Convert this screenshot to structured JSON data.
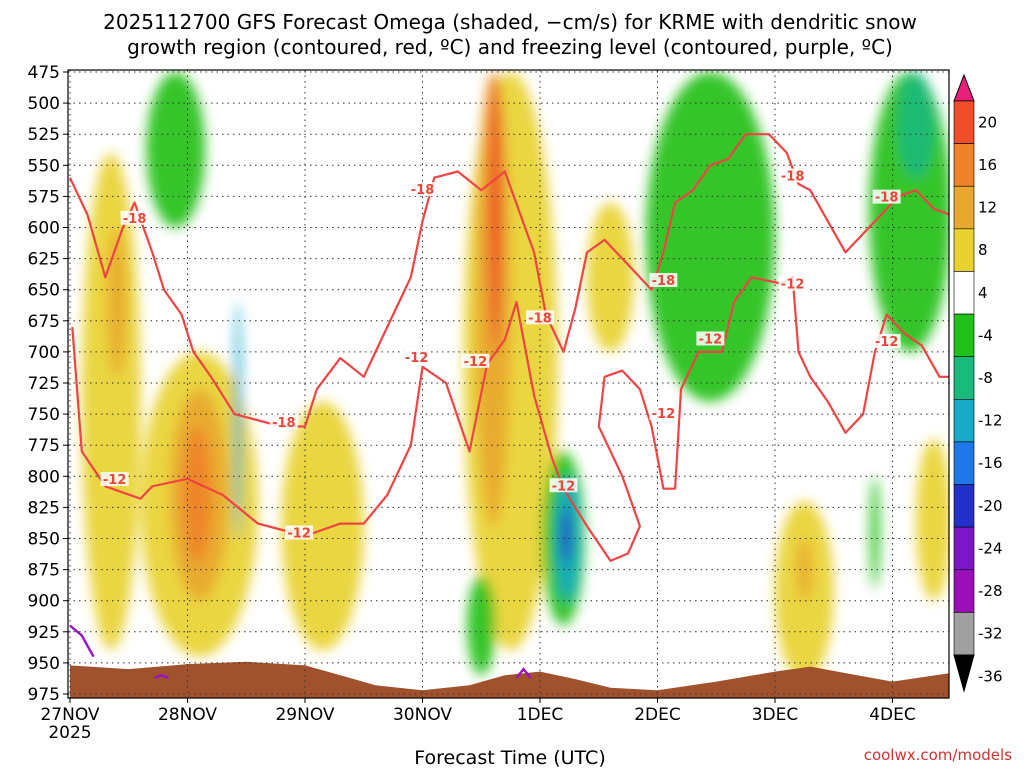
{
  "chart_data": {
    "type": "heatmap",
    "title_line1": "2025112700 GFS Forecast Omega (shaded, −cm/s) for KRME with dendritic snow",
    "title_line2": "growth region (contoured, red, ºC) and freezing level (contoured, purple, ºC)",
    "xlabel": "Forecast Time (UTC)",
    "credit": "coolwx.com/models",
    "x_ticks": [
      "27NOV",
      "28NOV",
      "29NOV",
      "30NOV",
      "1DEC",
      "2DEC",
      "3DEC",
      "4DEC"
    ],
    "x_year": "2025",
    "y_ticks": [
      "475",
      "500",
      "525",
      "550",
      "575",
      "600",
      "625",
      "650",
      "675",
      "700",
      "725",
      "750",
      "775",
      "800",
      "825",
      "850",
      "875",
      "900",
      "925",
      "950",
      "975"
    ],
    "ylim": [
      475,
      975
    ],
    "xlim_days": [
      0,
      7.5
    ],
    "grid": true,
    "colorbar": {
      "labels": [
        "20",
        "16",
        "12",
        "8",
        "4",
        "-4",
        "-8",
        "-12",
        "-16",
        "-20",
        "-24",
        "-28",
        "-32",
        "-36"
      ],
      "bins": [
        {
          "range": ">20",
          "color": "#e8207a"
        },
        {
          "range": "16-20",
          "color": "#f04d2a"
        },
        {
          "range": "12-16",
          "color": "#f0822a"
        },
        {
          "range": "8-12",
          "color": "#e8a830"
        },
        {
          "range": "4-8",
          "color": "#e8d230"
        },
        {
          "range": "-4-4",
          "color": "#ffffff"
        },
        {
          "range": "-8--4",
          "color": "#22c01a"
        },
        {
          "range": "-12--8",
          "color": "#1aba7c"
        },
        {
          "range": "-16--12",
          "color": "#18a8c8"
        },
        {
          "range": "-20--16",
          "color": "#1e78e8"
        },
        {
          "range": "-24--20",
          "color": "#2030c8"
        },
        {
          "range": "-28--24",
          "color": "#7a18c8"
        },
        {
          "range": "-32--28",
          "color": "#9a10b8"
        },
        {
          "range": "-36--32",
          "color": "#a0a0a0"
        },
        {
          "range": "<-36",
          "color": "#000000"
        }
      ]
    },
    "omega_features": [
      {
        "day": 0.35,
        "p_top": 540,
        "p_bot": 940,
        "halfwidth": 0.25,
        "color": "#e8d230"
      },
      {
        "day": 0.4,
        "p_top": 600,
        "p_bot": 720,
        "halfwidth": 0.08,
        "color": "#e8a830"
      },
      {
        "day": 1.1,
        "p_top": 700,
        "p_bot": 945,
        "halfwidth": 0.5,
        "color": "#e8d230"
      },
      {
        "day": 1.1,
        "p_top": 730,
        "p_bot": 900,
        "halfwidth": 0.25,
        "color": "#e8a830"
      },
      {
        "day": 1.08,
        "p_top": 760,
        "p_bot": 870,
        "halfwidth": 0.12,
        "color": "#f0822a"
      },
      {
        "day": 2.15,
        "p_top": 740,
        "p_bot": 940,
        "halfwidth": 0.35,
        "color": "#e8d230"
      },
      {
        "day": 3.75,
        "p_top": 475,
        "p_bot": 940,
        "halfwidth": 0.4,
        "color": "#e8d230"
      },
      {
        "day": 3.6,
        "p_top": 475,
        "p_bot": 840,
        "halfwidth": 0.15,
        "color": "#e8a830"
      },
      {
        "day": 3.62,
        "p_top": 475,
        "p_bot": 700,
        "halfwidth": 0.06,
        "color": "#f04d2a"
      },
      {
        "day": 4.6,
        "p_top": 580,
        "p_bot": 700,
        "halfwidth": 0.2,
        "color": "#e8d230"
      },
      {
        "day": 6.25,
        "p_top": 820,
        "p_bot": 965,
        "halfwidth": 0.25,
        "color": "#e8d230"
      },
      {
        "day": 6.25,
        "p_top": 850,
        "p_bot": 900,
        "halfwidth": 0.06,
        "color": "#e8a830"
      },
      {
        "day": 7.35,
        "p_top": 770,
        "p_bot": 900,
        "halfwidth": 0.15,
        "color": "#e8d230"
      },
      {
        "day": 0.9,
        "p_top": 475,
        "p_bot": 600,
        "halfwidth": 0.25,
        "color": "#22c01a"
      },
      {
        "day": 5.45,
        "p_top": 475,
        "p_bot": 740,
        "halfwidth": 0.55,
        "color": "#22c01a"
      },
      {
        "day": 7.15,
        "p_top": 475,
        "p_bot": 700,
        "halfwidth": 0.35,
        "color": "#22c01a"
      },
      {
        "day": 7.2,
        "p_top": 475,
        "p_bot": 560,
        "halfwidth": 0.15,
        "color": "#1aba7c"
      },
      {
        "day": 4.2,
        "p_top": 780,
        "p_bot": 920,
        "halfwidth": 0.18,
        "color": "#22c01a"
      },
      {
        "day": 4.23,
        "p_top": 800,
        "p_bot": 900,
        "halfwidth": 0.1,
        "color": "#18a8c8"
      },
      {
        "day": 4.22,
        "p_top": 825,
        "p_bot": 870,
        "halfwidth": 0.04,
        "color": "#2030c8"
      },
      {
        "day": 3.5,
        "p_top": 880,
        "p_bot": 960,
        "halfwidth": 0.12,
        "color": "#22c01a"
      },
      {
        "day": 1.43,
        "p_top": 660,
        "p_bot": 850,
        "halfwidth": 0.03,
        "color": "#18a8c8"
      },
      {
        "day": 6.85,
        "p_top": 800,
        "p_bot": 890,
        "halfwidth": 0.04,
        "color": "#22c01a"
      }
    ],
    "red_contours": [
      {
        "label": "-12",
        "points": [
          [
            0.02,
            680
          ],
          [
            0.1,
            780
          ],
          [
            0.3,
            808
          ],
          [
            0.6,
            818
          ],
          [
            0.7,
            808
          ],
          [
            1.0,
            802
          ],
          [
            1.3,
            815
          ],
          [
            1.6,
            838
          ],
          [
            2.0,
            848
          ],
          [
            2.3,
            838
          ],
          [
            2.5,
            838
          ],
          [
            2.7,
            815
          ],
          [
            2.9,
            775
          ],
          [
            3.0,
            712
          ],
          [
            3.2,
            725
          ],
          [
            3.4,
            780
          ],
          [
            3.55,
            710
          ],
          [
            3.7,
            690
          ],
          [
            3.8,
            660
          ],
          [
            3.95,
            735
          ],
          [
            4.1,
            785
          ],
          [
            4.2,
            810
          ],
          [
            4.4,
            840
          ],
          [
            4.6,
            868
          ],
          [
            4.75,
            862
          ],
          [
            4.85,
            840
          ],
          [
            4.7,
            800
          ],
          [
            4.5,
            760
          ],
          [
            4.55,
            720
          ],
          [
            4.7,
            715
          ],
          [
            4.85,
            730
          ],
          [
            4.95,
            760
          ],
          [
            5.05,
            810
          ],
          [
            5.15,
            810
          ],
          [
            5.2,
            730
          ],
          [
            5.35,
            700
          ],
          [
            5.55,
            700
          ],
          [
            5.65,
            660
          ],
          [
            5.8,
            640
          ],
          [
            6.05,
            645
          ],
          [
            6.15,
            640
          ],
          [
            6.2,
            700
          ],
          [
            6.3,
            720
          ],
          [
            6.45,
            740
          ],
          [
            6.6,
            765
          ],
          [
            6.75,
            750
          ],
          [
            6.85,
            700
          ],
          [
            6.95,
            670
          ],
          [
            7.1,
            685
          ],
          [
            7.25,
            695
          ],
          [
            7.4,
            720
          ],
          [
            7.5,
            720
          ]
        ]
      },
      {
        "label": "-18",
        "points": [
          [
            0.0,
            560
          ],
          [
            0.15,
            590
          ],
          [
            0.3,
            640
          ],
          [
            0.45,
            600
          ],
          [
            0.55,
            580
          ],
          [
            0.7,
            620
          ],
          [
            0.8,
            650
          ],
          [
            0.95,
            670
          ],
          [
            1.05,
            700
          ],
          [
            1.2,
            720
          ],
          [
            1.4,
            750
          ],
          [
            1.8,
            760
          ],
          [
            2.0,
            760
          ],
          [
            2.1,
            730
          ],
          [
            2.3,
            705
          ],
          [
            2.5,
            720
          ],
          [
            2.6,
            700
          ],
          [
            2.75,
            670
          ],
          [
            2.9,
            640
          ],
          [
            3.0,
            595
          ],
          [
            3.1,
            560
          ],
          [
            3.3,
            555
          ],
          [
            3.5,
            570
          ],
          [
            3.7,
            555
          ],
          [
            3.95,
            620
          ],
          [
            4.05,
            670
          ],
          [
            4.2,
            700
          ],
          [
            4.3,
            665
          ],
          [
            4.4,
            620
          ],
          [
            4.55,
            610
          ],
          [
            4.75,
            630
          ],
          [
            4.95,
            650
          ],
          [
            5.05,
            620
          ],
          [
            5.15,
            580
          ],
          [
            5.3,
            570
          ],
          [
            5.45,
            550
          ],
          [
            5.6,
            545
          ],
          [
            5.75,
            525
          ],
          [
            5.95,
            525
          ],
          [
            6.1,
            540
          ],
          [
            6.2,
            565
          ],
          [
            6.3,
            570
          ],
          [
            6.45,
            595
          ],
          [
            6.6,
            620
          ],
          [
            6.75,
            605
          ],
          [
            6.9,
            590
          ],
          [
            7.05,
            575
          ],
          [
            7.2,
            570
          ],
          [
            7.35,
            585
          ],
          [
            7.5,
            590
          ]
        ]
      }
    ],
    "red_contour_labels": [
      {
        "text": "-18",
        "day": 0.55,
        "p": 593
      },
      {
        "text": "-12",
        "day": 0.38,
        "p": 803
      },
      {
        "text": "-18",
        "day": 1.82,
        "p": 757
      },
      {
        "text": "-12",
        "day": 1.95,
        "p": 846
      },
      {
        "text": "-18",
        "day": 3.0,
        "p": 570
      },
      {
        "text": "-12",
        "day": 2.95,
        "p": 705
      },
      {
        "text": "-12",
        "day": 3.45,
        "p": 708
      },
      {
        "text": "-18",
        "day": 4.0,
        "p": 673
      },
      {
        "text": "-12",
        "day": 4.2,
        "p": 808
      },
      {
        "text": "-18",
        "day": 5.05,
        "p": 643
      },
      {
        "text": "-12",
        "day": 5.05,
        "p": 750
      },
      {
        "text": "-12",
        "day": 5.45,
        "p": 690
      },
      {
        "text": "-18",
        "day": 6.15,
        "p": 559
      },
      {
        "text": "-12",
        "day": 6.15,
        "p": 646
      },
      {
        "text": "-18",
        "day": 6.95,
        "p": 576
      },
      {
        "text": "-12",
        "day": 6.95,
        "p": 692
      }
    ],
    "freezing_level": [
      {
        "points": [
          [
            0.0,
            920
          ],
          [
            0.1,
            928
          ],
          [
            0.2,
            945
          ]
        ]
      },
      {
        "points": [
          [
            0.72,
            962
          ],
          [
            0.78,
            960
          ],
          [
            0.84,
            962
          ]
        ]
      },
      {
        "points": [
          [
            3.8,
            962
          ],
          [
            3.86,
            955
          ],
          [
            3.92,
            962
          ]
        ]
      }
    ],
    "terrain": [
      [
        0.0,
        952
      ],
      [
        0.5,
        955
      ],
      [
        1.0,
        951
      ],
      [
        1.5,
        949
      ],
      [
        2.0,
        952
      ],
      [
        2.3,
        960
      ],
      [
        2.6,
        968
      ],
      [
        3.0,
        972
      ],
      [
        3.4,
        968
      ],
      [
        3.7,
        960
      ],
      [
        4.0,
        957
      ],
      [
        4.3,
        963
      ],
      [
        4.6,
        970
      ],
      [
        5.0,
        972
      ],
      [
        5.5,
        965
      ],
      [
        6.0,
        957
      ],
      [
        6.3,
        953
      ],
      [
        6.7,
        960
      ],
      [
        7.0,
        965
      ],
      [
        7.5,
        958
      ]
    ]
  }
}
